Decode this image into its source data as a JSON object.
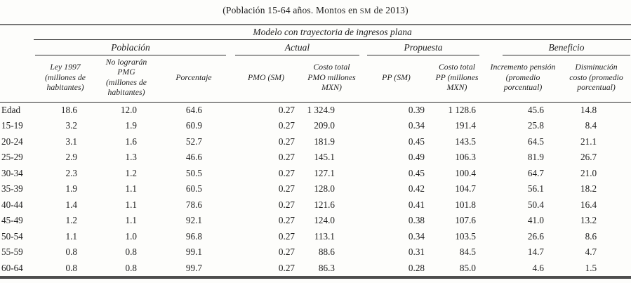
{
  "caption": {
    "prefix": "(Población 15-64 años. Montos en ",
    "sm": "SM",
    "suffix": " de 2013)"
  },
  "table": {
    "model_header": "Modelo con trayectoria de ingresos plana",
    "groups": [
      {
        "label": "Población",
        "span": 3
      },
      {
        "label": "Actual",
        "span": 2
      },
      {
        "label": "Propuesta",
        "span": 2
      },
      {
        "label": "Beneficio",
        "span": 2
      }
    ],
    "columns": [
      "Ley 1997 (millones de habitantes)",
      "No lograrán PMG (millones de habitantes)",
      "Porcentaje",
      "PMO (SM)",
      "Costo total PMO millones MXN)",
      "PP (SM)",
      "Costo total PP (millones MXN)",
      "Incremento pensión (promedio porcentual)",
      "Disminución costo (promedio porcentual)"
    ],
    "rows": [
      {
        "label": "Edad",
        "values": [
          "18.6",
          "12.0",
          "64.6",
          "0.27",
          "1 324.9",
          "0.39",
          "1 128.6",
          "45.6",
          "14.8"
        ]
      },
      {
        "label": "15-19",
        "values": [
          "3.2",
          "1.9",
          "60.9",
          "0.27",
          "209.0",
          "0.34",
          "191.4",
          "25.8",
          "8.4"
        ]
      },
      {
        "label": "20-24",
        "values": [
          "3.1",
          "1.6",
          "52.7",
          "0.27",
          "181.9",
          "0.45",
          "143.5",
          "64.5",
          "21.1"
        ]
      },
      {
        "label": "25-29",
        "values": [
          "2.9",
          "1.3",
          "46.6",
          "0.27",
          "145.1",
          "0.49",
          "106.3",
          "81.9",
          "26.7"
        ]
      },
      {
        "label": "30-34",
        "values": [
          "2.3",
          "1.2",
          "50.5",
          "0.27",
          "127.1",
          "0.45",
          "100.4",
          "64.7",
          "21.0"
        ]
      },
      {
        "label": "35-39",
        "values": [
          "1.9",
          "1.1",
          "60.5",
          "0.27",
          "128.0",
          "0.42",
          "104.7",
          "56.1",
          "18.2"
        ]
      },
      {
        "label": "40-44",
        "values": [
          "1.4",
          "1.1",
          "78.6",
          "0.27",
          "121.6",
          "0.41",
          "101.8",
          "50.4",
          "16.4"
        ]
      },
      {
        "label": "45-49",
        "values": [
          "1.2",
          "1.1",
          "92.1",
          "0.27",
          "124.0",
          "0.38",
          "107.6",
          "41.0",
          "13.2"
        ]
      },
      {
        "label": "50-54",
        "values": [
          "1.1",
          "1.0",
          "96.8",
          "0.27",
          "113.1",
          "0.34",
          "103.5",
          "26.6",
          "8.6"
        ]
      },
      {
        "label": "55-59",
        "values": [
          "0.8",
          "0.8",
          "99.1",
          "0.27",
          "88.6",
          "0.31",
          "84.5",
          "14.7",
          "4.7"
        ]
      },
      {
        "label": "60-64",
        "values": [
          "0.8",
          "0.8",
          "99.7",
          "0.27",
          "86.3",
          "0.28",
          "85.0",
          "4.6",
          "1.5"
        ]
      }
    ]
  },
  "colors": {
    "text": "#1f1f1f",
    "rule_top": "#767676",
    "rule_thin": "#2e2e2e",
    "rule_bottom": "#4e4e4e",
    "background": "#fdfdfb"
  }
}
